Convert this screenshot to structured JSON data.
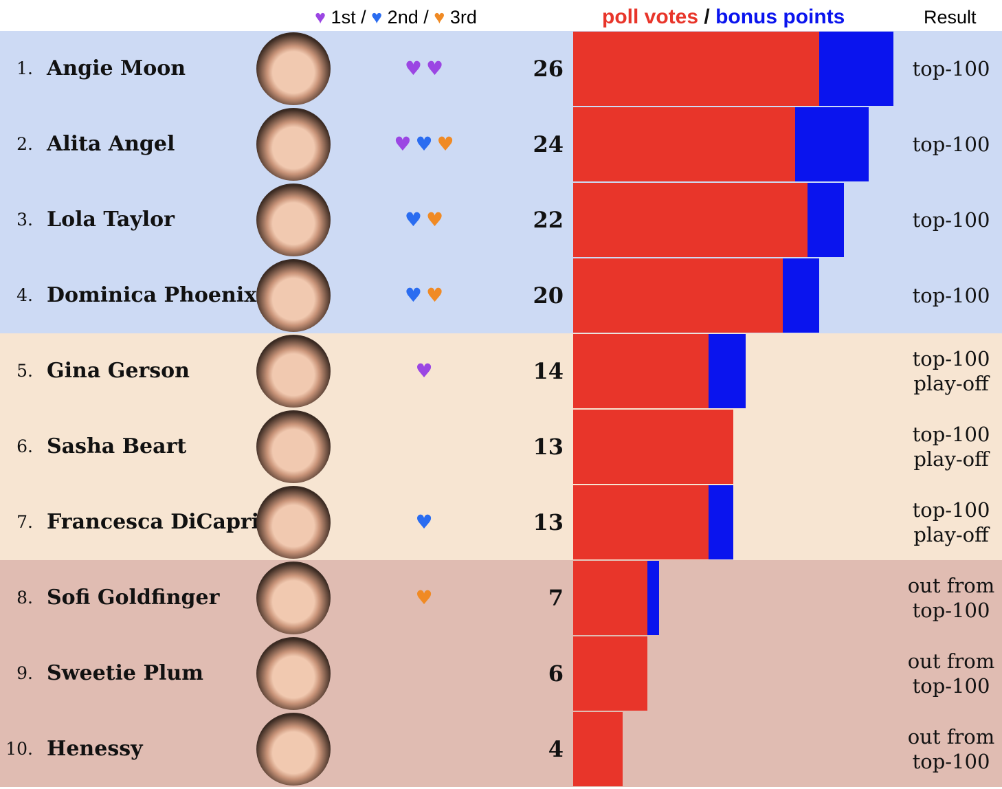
{
  "header": {
    "first": "1st",
    "second": "2nd",
    "third": "3rd",
    "sep": "/",
    "poll_votes": "poll votes",
    "bonus_points": "bonus points",
    "result": "Result"
  },
  "colors": {
    "poll": "#e8352a",
    "bonus": "#0a14ee",
    "heart_1st": "#9b46e3",
    "heart_2nd": "#2a6cf0",
    "heart_3rd": "#f08a24",
    "zone_top": "#cddaf4",
    "zone_playoff": "#f7e5d2",
    "zone_out": "#e0bcb2"
  },
  "chart_data": {
    "type": "bar",
    "orientation": "horizontal-stacked",
    "series_names": [
      "poll votes",
      "bonus points"
    ],
    "xlim": [
      0,
      26
    ],
    "rows": [
      {
        "rank": "1.",
        "name": "Angie Moon",
        "hearts": [
          "1st",
          "1st"
        ],
        "score": "26",
        "poll": 20,
        "bonus": 6,
        "zone": "top",
        "result": [
          "top-100"
        ]
      },
      {
        "rank": "2.",
        "name": "Alita Angel",
        "hearts": [
          "1st",
          "2nd",
          "3rd"
        ],
        "score": "24",
        "poll": 18,
        "bonus": 6,
        "zone": "top",
        "result": [
          "top-100"
        ]
      },
      {
        "rank": "3.",
        "name": "Lola Taylor",
        "hearts": [
          "2nd",
          "3rd"
        ],
        "score": "22",
        "poll": 19,
        "bonus": 3,
        "zone": "top",
        "result": [
          "top-100"
        ]
      },
      {
        "rank": "4.",
        "name": "Dominica Phoenix",
        "hearts": [
          "2nd",
          "3rd"
        ],
        "score": "20",
        "poll": 17,
        "bonus": 3,
        "zone": "top",
        "result": [
          "top-100"
        ]
      },
      {
        "rank": "5.",
        "name": "Gina Gerson",
        "hearts": [
          "1st"
        ],
        "score": "14",
        "poll": 11,
        "bonus": 3,
        "zone": "playoff",
        "result": [
          "top-100",
          "play-off"
        ]
      },
      {
        "rank": "6.",
        "name": "Sasha Beart",
        "hearts": [],
        "score": "13",
        "poll": 13,
        "bonus": 0,
        "zone": "playoff",
        "result": [
          "top-100",
          "play-off"
        ]
      },
      {
        "rank": "7.",
        "name": "Francesca DiCaprio",
        "hearts": [
          "2nd"
        ],
        "score": "13",
        "poll": 11,
        "bonus": 2,
        "zone": "playoff",
        "result": [
          "top-100",
          "play-off"
        ]
      },
      {
        "rank": "8.",
        "name": "Sofi Goldfinger",
        "hearts": [
          "3rd"
        ],
        "score": "7",
        "poll": 6,
        "bonus": 1,
        "zone": "out",
        "result": [
          "out from",
          "top-100"
        ]
      },
      {
        "rank": "9.",
        "name": "Sweetie Plum",
        "hearts": [],
        "score": "6",
        "poll": 6,
        "bonus": 0,
        "zone": "out",
        "result": [
          "out from",
          "top-100"
        ]
      },
      {
        "rank": "10.",
        "name": "Henessy",
        "hearts": [],
        "score": "4",
        "poll": 4,
        "bonus": 0,
        "zone": "out",
        "result": [
          "out from",
          "top-100"
        ]
      }
    ]
  }
}
